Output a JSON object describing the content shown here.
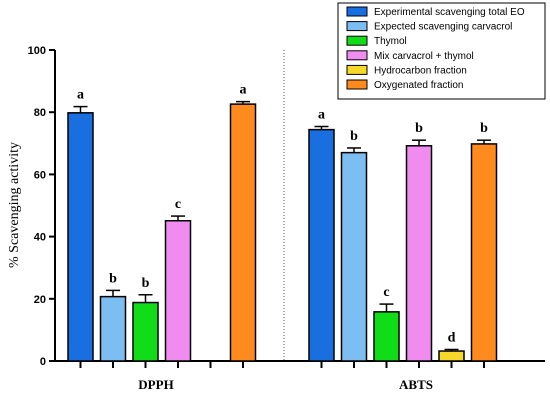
{
  "chart_data": {
    "type": "bar",
    "ylabel": "% Scavenging activity",
    "ylim": [
      0,
      100
    ],
    "yticks": [
      0,
      20,
      40,
      60,
      80,
      100
    ],
    "grid": false,
    "legend_position": "top-right",
    "categories": [
      "DPPH",
      "ABTS"
    ],
    "series": [
      {
        "name": "Experimental scavenging total EO",
        "color": "#1a6fe0",
        "values": [
          79.8,
          74.4
        ],
        "errors": [
          2.0,
          1.0
        ],
        "labels": [
          "a",
          "a"
        ]
      },
      {
        "name": "Expected scavenging carvacrol",
        "color": "#7cbdf2",
        "values": [
          20.7,
          67.0
        ],
        "errors": [
          2.0,
          1.5
        ],
        "labels": [
          "b",
          "b"
        ]
      },
      {
        "name": "Thymol",
        "color": "#10dc18",
        "values": [
          18.8,
          15.8
        ],
        "errors": [
          2.5,
          2.5
        ],
        "labels": [
          "b",
          "c"
        ]
      },
      {
        "name": "Mix carvacrol + thymol",
        "color": "#f08cf0",
        "values": [
          45.1,
          69.2
        ],
        "errors": [
          1.5,
          1.8
        ],
        "labels": [
          "c",
          "b"
        ]
      },
      {
        "name": "Hydrocarbon fraction",
        "color": "#f5d82a",
        "values": [
          null,
          3.2
        ],
        "errors": [
          null,
          0.5
        ],
        "labels": [
          "",
          "d"
        ]
      },
      {
        "name": "Oxygenated fraction",
        "color": "#ff8a1e",
        "values": [
          82.6,
          69.8
        ],
        "errors": [
          0.8,
          1.2
        ],
        "labels": [
          "a",
          "b"
        ]
      }
    ]
  }
}
